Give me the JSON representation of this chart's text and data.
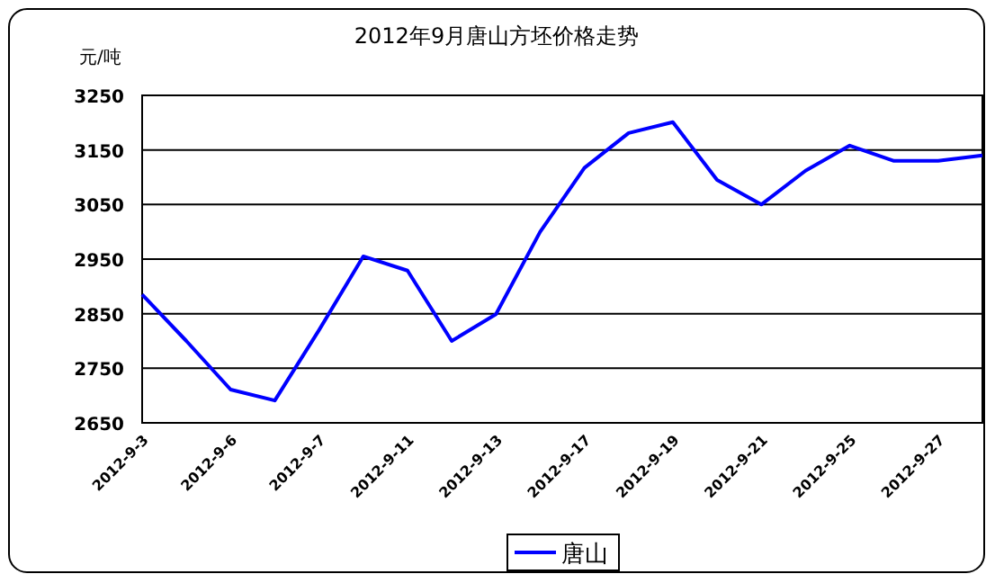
{
  "chart_data": {
    "type": "line",
    "title": "2012年9月唐山方坯价格走势",
    "ylabel": "元/吨",
    "categories": [
      "2012-9-3",
      null,
      "2012-9-6",
      null,
      "2012-9-7",
      null,
      "2012-9-11",
      null,
      "2012-9-13",
      null,
      "2012-9-17",
      null,
      "2012-9-19",
      null,
      "2012-9-21",
      null,
      "2012-9-25",
      null,
      "2012-9-27",
      null
    ],
    "series": [
      {
        "name": "唐山",
        "color": "#0000ff",
        "values": [
          2885,
          2800,
          2711,
          2691,
          2820,
          2955,
          2929,
          2800,
          2849,
          3000,
          3117,
          3181,
          3201,
          3095,
          3050,
          3112,
          3158,
          3130,
          3130,
          3140
        ]
      }
    ],
    "ylim": [
      2650,
      3250
    ],
    "yticks": [
      2650,
      2750,
      2850,
      2950,
      3050,
      3150,
      3250
    ],
    "grid": "y",
    "legend": "bottom",
    "marker": "none",
    "line_style": "solid"
  }
}
